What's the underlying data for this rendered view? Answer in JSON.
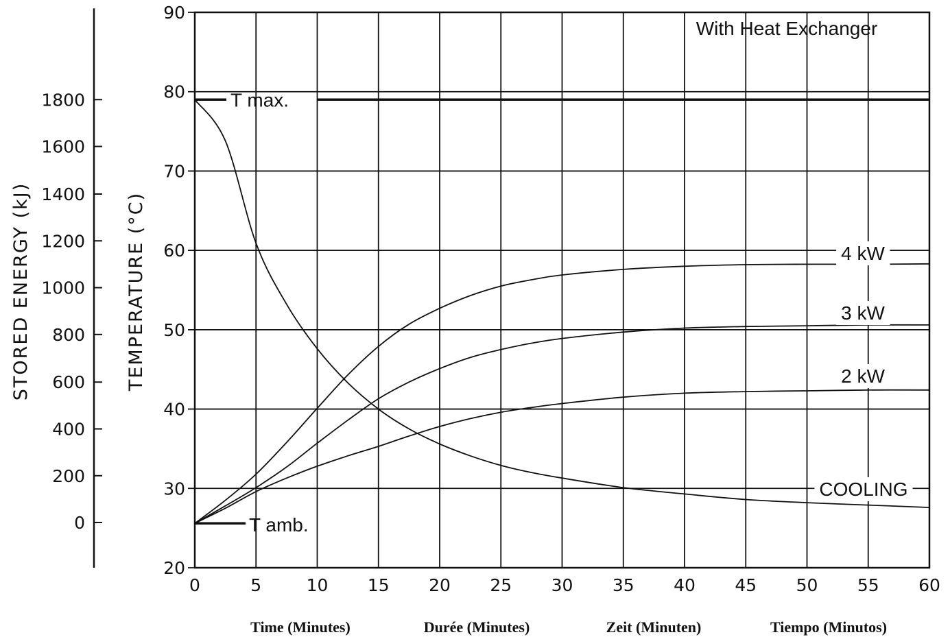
{
  "chart_data": {
    "type": "line",
    "title": "",
    "xlim": [
      0,
      60
    ],
    "ylim": [
      20,
      90
    ],
    "x_ticks": [
      0,
      5,
      10,
      15,
      20,
      25,
      30,
      35,
      40,
      45,
      50,
      55,
      60
    ],
    "y_ticks": [
      20,
      30,
      40,
      50,
      60,
      70,
      80,
      90
    ],
    "energy_axis": {
      "label": "STORED ENERGY   (kJ)",
      "ticks": [
        "1800",
        "1600",
        "1400",
        "1200",
        "1000",
        "800",
        "600",
        "400",
        "200",
        "0"
      ],
      "tick_temps": [
        79,
        73.1,
        67.1,
        61.2,
        55.3,
        49.4,
        43.4,
        37.5,
        31.6,
        25.7
      ],
      "range_temps": [
        90.5,
        20
      ]
    },
    "ylabel": "TEMPERATURE   (°C)",
    "x_captions": [
      "Time  (Minutes)",
      "Durée  (Minutes)",
      "Zeit (Minuten)",
      "Tiempo  (Minutos)"
    ],
    "grid": true,
    "header_annotation": "With Heat Exchanger",
    "reference_lines": [
      {
        "label": "T max.",
        "y": 79
      },
      {
        "label": "T  amb.",
        "y": 25.6
      }
    ],
    "series": [
      {
        "name": "4 kW",
        "x": [
          0,
          2.5,
          5,
          7.5,
          10,
          12.5,
          15,
          17.5,
          20,
          22.5,
          25,
          27.5,
          30,
          35,
          40,
          45,
          50,
          55,
          60
        ],
        "y": [
          25.6,
          28.5,
          31.8,
          35.8,
          40.1,
          44.3,
          47.9,
          50.7,
          52.7,
          54.3,
          55.5,
          56.3,
          56.9,
          57.6,
          58,
          58.2,
          58.25,
          58.25,
          58.3
        ]
      },
      {
        "name": "3 kW",
        "x": [
          0,
          2.5,
          5,
          7.5,
          10,
          12.5,
          15,
          17.5,
          20,
          22.5,
          25,
          27.5,
          30,
          35,
          40,
          45,
          50,
          55,
          60
        ],
        "y": [
          25.6,
          27.8,
          30.1,
          32.7,
          35.7,
          38.6,
          41.3,
          43.4,
          45.1,
          46.5,
          47.5,
          48.3,
          48.9,
          49.7,
          50.2,
          50.4,
          50.5,
          50.6,
          50.6
        ]
      },
      {
        "name": "2 kW",
        "x": [
          0,
          2.5,
          5,
          7.5,
          10,
          12.5,
          15,
          17.5,
          20,
          22.5,
          25,
          27.5,
          30,
          35,
          40,
          45,
          50,
          55,
          60
        ],
        "y": [
          25.6,
          27.5,
          29.6,
          31.3,
          32.8,
          34.1,
          35.3,
          36.6,
          37.8,
          38.8,
          39.6,
          40.2,
          40.7,
          41.5,
          42,
          42.2,
          42.3,
          42.4,
          42.4
        ]
      },
      {
        "name": "COOLING",
        "x": [
          0,
          2.5,
          5,
          7.5,
          10,
          12.5,
          15,
          17.5,
          20,
          22.5,
          25,
          27.5,
          30,
          35,
          40,
          45,
          50,
          55,
          60
        ],
        "y": [
          79,
          73.8,
          60.9,
          53.2,
          47.6,
          43.3,
          40,
          37.5,
          35.6,
          34.1,
          32.9,
          32,
          31.3,
          30.1,
          29.3,
          28.6,
          28.2,
          27.9,
          27.6
        ]
      }
    ]
  }
}
